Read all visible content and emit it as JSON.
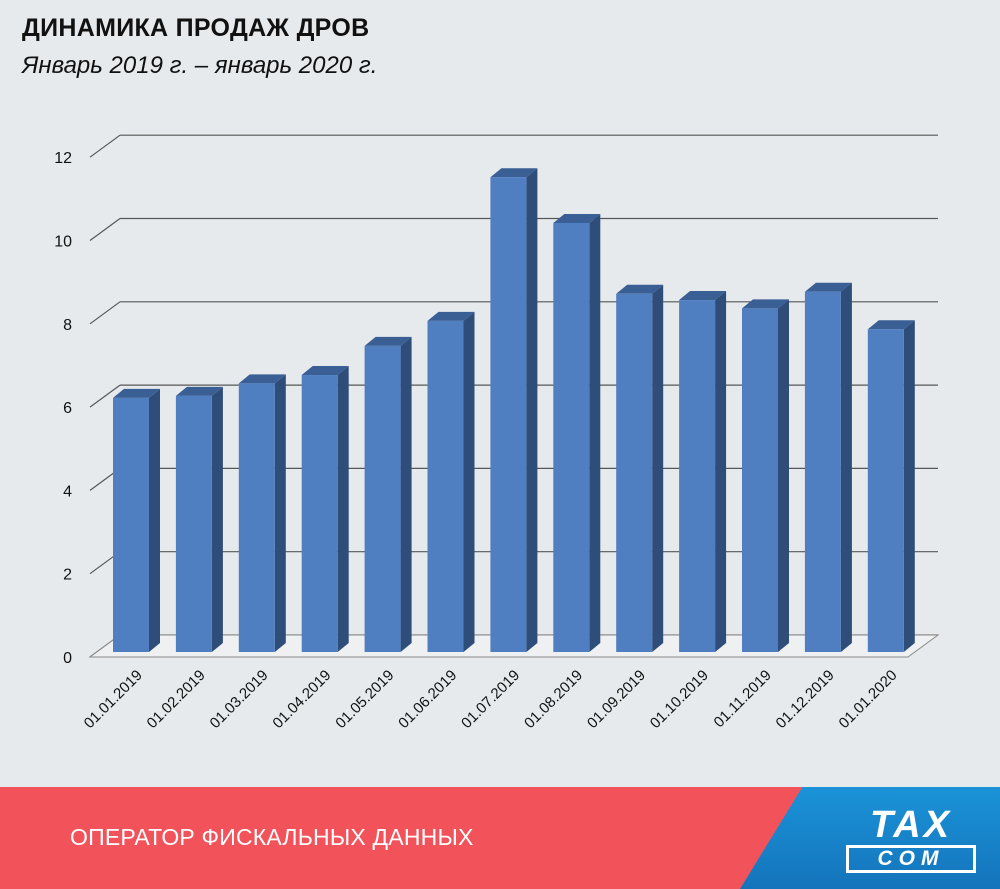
{
  "header": {
    "title": "ДИНАМИКА ПРОДАЖ ДРОВ",
    "subtitle": "Январь 2019 г. – январь 2020 г."
  },
  "footer": {
    "text": "ОПЕРАТОР ФИСКАЛЬНЫХ ДАННЫХ",
    "logo_top": "TAX",
    "logo_bottom": "COM"
  },
  "colors": {
    "bar_front": "#4f7fc1",
    "bar_side": "#2f4d79",
    "bar_top": "#3a5f95",
    "grid": "#575757",
    "footer_red": "#f2535a",
    "footer_blue": "#1b93d8"
  },
  "chart_data": {
    "type": "bar",
    "categories": [
      "01.01.2019",
      "01.02.2019",
      "01.03.2019",
      "01.04.2019",
      "01.05.2019",
      "01.06.2019",
      "01.07.2019",
      "01.08.2019",
      "01.09.2019",
      "01.10.2019",
      "01.11.2019",
      "01.12.2019",
      "01.01.2020"
    ],
    "values": [
      6.1,
      6.15,
      6.45,
      6.65,
      7.35,
      7.95,
      11.4,
      10.3,
      8.6,
      8.45,
      8.25,
      8.65,
      7.75
    ],
    "yticks": [
      "0",
      "2",
      "4",
      "6",
      "8",
      "10",
      "12"
    ],
    "ylim": [
      0,
      12.5
    ],
    "grid": true,
    "style": "3d-column",
    "title": "ДИНАМИКА ПРОДАЖ ДРОВ",
    "subtitle": "Январь 2019 г. – январь 2020 г.",
    "xlabel": "",
    "ylabel": ""
  }
}
